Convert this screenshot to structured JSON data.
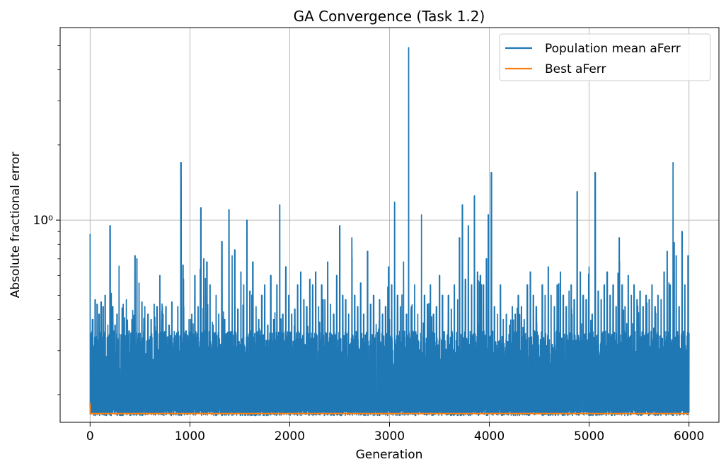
{
  "chart_data": {
    "type": "line",
    "title": "GA Convergence (Task 1.2)",
    "xlabel": "Generation",
    "ylabel": "Absolute fractional error",
    "xlim": [
      -300,
      6300
    ],
    "ylim": [
      0.155,
      5.9
    ],
    "yscale": "log",
    "grid": true,
    "legend_position": "top-right",
    "x_ticks": [
      0,
      1000,
      2000,
      3000,
      4000,
      5000,
      6000
    ],
    "x_tick_labels": [
      "0",
      "1000",
      "2000",
      "3000",
      "4000",
      "5000",
      "6000"
    ],
    "y_major_ticks": [
      1
    ],
    "y_major_tick_labels": [
      "10⁰"
    ],
    "y_minor_ticks": [
      0.2,
      0.3,
      0.4,
      0.5,
      0.6,
      0.7,
      0.8,
      0.9,
      2,
      3,
      4,
      5
    ],
    "series": [
      {
        "name": "Population mean aFerr",
        "color": "#1f77b4",
        "baseline_low": 0.17,
        "typical_high": 0.3,
        "x": [
          0,
          10,
          25,
          50,
          70,
          90,
          110,
          130,
          150,
          175,
          200,
          225,
          250,
          270,
          300,
          330,
          360,
          390,
          420,
          450,
          470,
          490,
          520,
          550,
          580,
          610,
          640,
          670,
          700,
          730,
          760,
          790,
          820,
          850,
          880,
          910,
          930,
          960,
          990,
          1020,
          1050,
          1080,
          1110,
          1140,
          1170,
          1200,
          1230,
          1260,
          1290,
          1320,
          1350,
          1390,
          1420,
          1450,
          1480,
          1510,
          1540,
          1570,
          1600,
          1630,
          1660,
          1690,
          1720,
          1750,
          1780,
          1810,
          1840,
          1870,
          1900,
          1930,
          1960,
          1990,
          2020,
          2050,
          2080,
          2110,
          2140,
          2170,
          2200,
          2230,
          2260,
          2290,
          2320,
          2350,
          2380,
          2410,
          2440,
          2470,
          2500,
          2530,
          2560,
          2590,
          2620,
          2650,
          2680,
          2710,
          2740,
          2780,
          2810,
          2840,
          2870,
          2900,
          2930,
          2960,
          2990,
          3020,
          3050,
          3080,
          3110,
          3140,
          3170,
          3190,
          3220,
          3250,
          3280,
          3320,
          3350,
          3380,
          3410,
          3440,
          3470,
          3500,
          3530,
          3560,
          3590,
          3620,
          3650,
          3680,
          3700,
          3730,
          3760,
          3790,
          3820,
          3850,
          3880,
          3910,
          3940,
          3970,
          3990,
          4020,
          4050,
          4080,
          4110,
          4140,
          4170,
          4200,
          4230,
          4260,
          4290,
          4320,
          4350,
          4380,
          4410,
          4440,
          4470,
          4500,
          4530,
          4560,
          4590,
          4620,
          4650,
          4680,
          4710,
          4740,
          4770,
          4800,
          4820,
          4850,
          4880,
          4910,
          4940,
          4970,
          5000,
          5030,
          5060,
          5090,
          5120,
          5150,
          5180,
          5210,
          5240,
          5270,
          5300,
          5330,
          5360,
          5390,
          5420,
          5450,
          5480,
          5510,
          5540,
          5570,
          5600,
          5630,
          5660,
          5690,
          5720,
          5750,
          5780,
          5810,
          5840,
          5870,
          5900,
          5930,
          5960,
          5990
        ],
        "y": [
          0.88,
          0.35,
          0.4,
          0.48,
          0.46,
          0.42,
          0.47,
          0.45,
          0.5,
          0.38,
          0.95,
          0.45,
          0.38,
          0.42,
          0.85,
          0.46,
          0.48,
          0.36,
          0.4,
          0.72,
          0.7,
          0.56,
          0.47,
          0.45,
          0.42,
          0.4,
          0.46,
          0.45,
          0.6,
          0.42,
          0.45,
          0.38,
          0.47,
          0.34,
          0.45,
          1.7,
          0.66,
          0.36,
          0.4,
          0.42,
          0.6,
          0.45,
          1.12,
          0.7,
          0.68,
          0.55,
          0.38,
          0.5,
          0.42,
          0.82,
          0.4,
          1.1,
          0.72,
          0.76,
          0.44,
          0.62,
          0.55,
          1.0,
          0.52,
          0.68,
          0.45,
          0.4,
          0.5,
          0.55,
          0.38,
          0.6,
          0.4,
          0.55,
          1.15,
          0.42,
          0.65,
          0.5,
          0.42,
          0.44,
          0.55,
          0.62,
          0.48,
          0.45,
          0.58,
          0.55,
          0.62,
          0.45,
          0.55,
          0.48,
          0.68,
          0.46,
          0.42,
          0.6,
          0.95,
          0.5,
          0.48,
          0.42,
          0.85,
          0.5,
          0.45,
          0.56,
          0.42,
          0.75,
          0.46,
          0.5,
          0.45,
          0.48,
          0.42,
          0.45,
          0.65,
          0.55,
          1.18,
          0.5,
          0.45,
          0.68,
          0.42,
          4.9,
          0.45,
          0.55,
          0.42,
          1.05,
          0.5,
          0.46,
          0.55,
          0.42,
          0.45,
          0.6,
          0.5,
          0.24,
          0.5,
          0.44,
          0.55,
          0.48,
          0.85,
          1.15,
          0.58,
          0.95,
          0.55,
          1.25,
          0.62,
          0.6,
          0.55,
          0.7,
          1.05,
          1.55,
          0.45,
          0.42,
          0.55,
          0.4,
          0.42,
          0.38,
          0.45,
          0.42,
          0.5,
          0.45,
          0.4,
          0.55,
          0.62,
          0.5,
          0.45,
          0.48,
          0.55,
          0.5,
          0.65,
          0.5,
          0.45,
          0.55,
          0.62,
          0.5,
          0.45,
          0.52,
          0.55,
          0.48,
          1.3,
          0.62,
          0.5,
          0.48,
          0.65,
          0.42,
          1.55,
          0.52,
          0.48,
          0.55,
          0.62,
          0.5,
          0.55,
          0.45,
          0.85,
          0.55,
          0.45,
          0.6,
          0.5,
          0.55,
          0.48,
          0.52,
          0.45,
          0.5,
          0.48,
          0.55,
          0.45,
          0.5,
          0.48,
          0.62,
          0.75,
          0.55,
          1.7,
          0.72,
          0.45,
          0.9,
          0.55,
          0.72
        ]
      },
      {
        "name": "Best aFerr",
        "color": "#ff7f0e",
        "x": [
          0,
          2,
          10,
          6000
        ],
        "y": [
          0.185,
          0.168,
          0.168,
          0.168
        ]
      }
    ]
  }
}
